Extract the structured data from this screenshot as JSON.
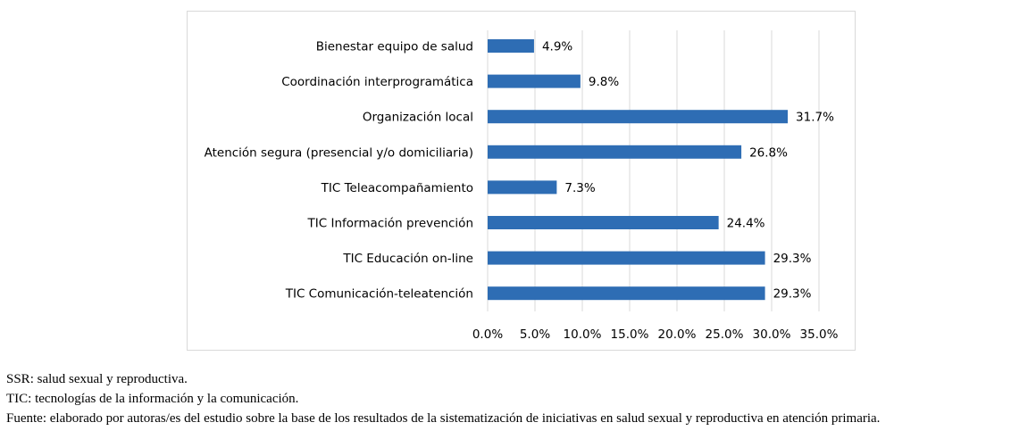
{
  "chart_data": {
    "type": "bar",
    "orientation": "horizontal",
    "categories": [
      "Bienestar equipo de salud",
      "Coordinación interprogramática",
      "Organización local",
      "Atención segura (presencial y/o domiciliaria)",
      "TIC Teleacompañamiento",
      "TIC Información prevención",
      "TIC Educación on-line",
      "TIC Comunicación-teleatención"
    ],
    "values": [
      4.9,
      9.8,
      31.7,
      26.8,
      7.3,
      24.4,
      29.3,
      29.3
    ],
    "value_labels": [
      "4.9%",
      "9.8%",
      "31.7%",
      "26.8%",
      "7.3%",
      "24.4%",
      "29.3%",
      "29.3%"
    ],
    "xlim": [
      0,
      35
    ],
    "x_ticks": [
      0,
      5,
      10,
      15,
      20,
      25,
      30,
      35
    ],
    "x_tick_labels": [
      "0.0%",
      "5.0%",
      "10.0%",
      "15.0%",
      "20.0%",
      "25.0%",
      "30.0%",
      "35.0%"
    ],
    "grid": true,
    "legend": "none",
    "bar_color": "#2e6db4",
    "grid_color": "#d9d9d9",
    "title": "",
    "xlabel": "",
    "ylabel": ""
  },
  "notes": {
    "ssr": "SSR: salud sexual y reproductiva.",
    "tic": "TIC: tecnologías de la información y la comunicación.",
    "source": "Fuente: elaborado por autoras/es del estudio sobre la base de los resultados de la sistematización de iniciativas en salud sexual y reproductiva en atención primaria."
  }
}
